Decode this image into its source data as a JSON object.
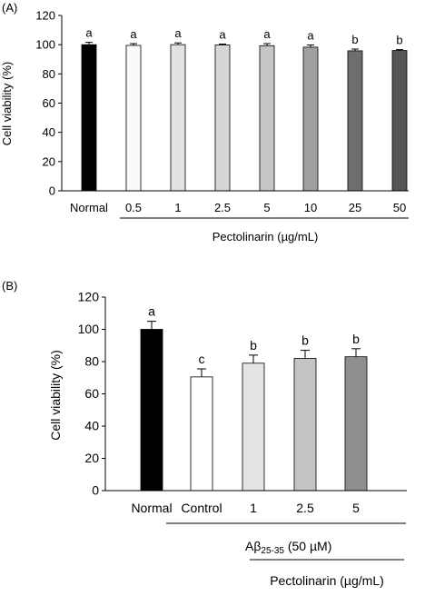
{
  "chart_data": [
    {
      "panel_label": "(A)",
      "type": "bar",
      "ylabel": "Cell viability (%)",
      "ylim": [
        0,
        120
      ],
      "yticks": [
        0,
        20,
        40,
        60,
        80,
        100,
        120
      ],
      "categories": [
        "Normal",
        "0.5",
        "1",
        "2.5",
        "5",
        "10",
        "25",
        "50"
      ],
      "values": [
        100,
        99.5,
        100,
        99.8,
        99.3,
        98.3,
        95.8,
        96
      ],
      "errors": [
        1.6,
        1.2,
        1.2,
        0.6,
        1.4,
        1.5,
        1.2,
        0.6
      ],
      "letters": [
        "a",
        "a",
        "a",
        "a",
        "a",
        "a",
        "b",
        "b"
      ],
      "bar_colors": [
        "#000000",
        "#fafafa",
        "#e2e2e2",
        "#d6d6d6",
        "#c6c6c6",
        "#a0a0a0",
        "#6e6e6e",
        "#555555"
      ],
      "group_label": "Pectolinarin (µg/mL)"
    },
    {
      "panel_label": "(B)",
      "type": "bar",
      "ylabel": "Cell viability (%)",
      "ylim": [
        0,
        120
      ],
      "yticks": [
        0,
        20,
        40,
        60,
        80,
        100,
        120
      ],
      "categories": [
        "Normal",
        "Control",
        "1",
        "2.5",
        "5"
      ],
      "values": [
        100,
        70.5,
        79,
        82,
        83
      ],
      "errors": [
        5,
        5,
        5,
        5,
        5
      ],
      "letters": [
        "a",
        "c",
        "b",
        "b",
        "b"
      ],
      "bar_colors": [
        "#000000",
        "#ffffff",
        "#e4e4e4",
        "#c4c4c4",
        "#8f8f8f"
      ],
      "group_label_1_main": "Aβ",
      "group_label_1_sub": "25-35",
      "group_label_1_tail": " (50 µM)",
      "group_label_2": "Pectolinarin (µg/mL)"
    }
  ]
}
